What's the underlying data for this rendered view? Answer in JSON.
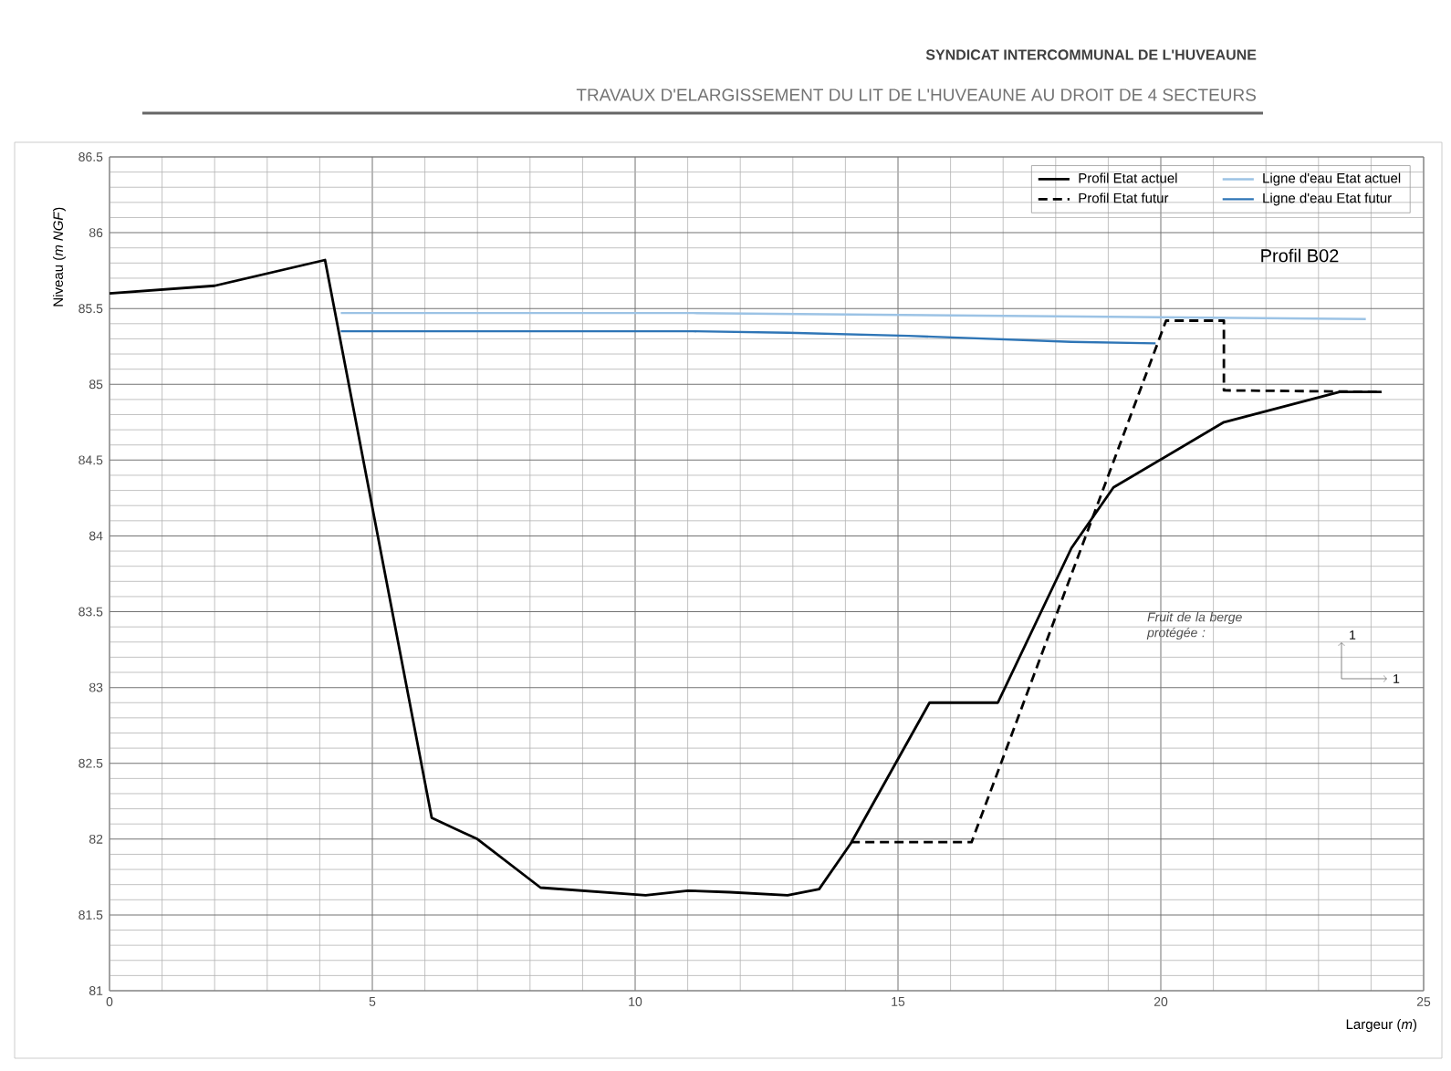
{
  "chart_data": {
    "type": "line",
    "title": "SYNDICAT INTERCOMMUNAL DE L'HUVEAUNE",
    "subtitle": "TRAVAUX D'ELARGISSEMENT DU LIT DE L'HUVEAUNE AU DROIT DE 4 SECTEURS",
    "xlabel": "Largeur (*m*)",
    "ylabel": "Niveau (*m NGF*)",
    "xlim": [
      0,
      25
    ],
    "xticks": [
      0,
      5,
      10,
      15,
      20,
      25
    ],
    "ylim": [
      81,
      86.5
    ],
    "yticks": [
      81,
      81.5,
      82,
      82.5,
      83,
      83.5,
      84,
      84.5,
      85,
      85.5,
      86,
      86.5
    ],
    "grid": true,
    "legend": "top right",
    "series": [
      {
        "name": "Profil Etat actuel",
        "color": "#000000",
        "line_style": "solid",
        "x": [
          0,
          2.0,
          4.1,
          6.13,
          7.0,
          8.2,
          10.2,
          11.0,
          11.8,
          12.9,
          13.5,
          14.1,
          15.6,
          16.9,
          18.3,
          19.1,
          21.2,
          23.4,
          24.2
        ],
        "values": [
          85.6,
          85.65,
          85.82,
          82.14,
          82.0,
          81.68,
          81.63,
          81.66,
          81.65,
          81.63,
          81.67,
          81.97,
          82.9,
          82.9,
          83.92,
          84.32,
          84.75,
          84.95,
          84.95
        ]
      },
      {
        "name": "Profil Etat futur",
        "color": "#000000",
        "line_style": "dashed",
        "x": [
          14.1,
          16.4,
          20.1,
          21.2,
          21.2,
          24.2
        ],
        "values": [
          81.98,
          81.98,
          85.42,
          85.42,
          84.96,
          84.95
        ]
      },
      {
        "name": "Ligne d'eau Etat actuel",
        "color": "#9cc3e5",
        "line_style": "solid",
        "x": [
          4.4,
          11.1,
          23.9
        ],
        "values": [
          85.47,
          85.47,
          85.43
        ]
      },
      {
        "name": "Ligne d'eau Etat futur",
        "color": "#2e75b6",
        "line_style": "solid",
        "x": [
          4.4,
          11.1,
          12.9,
          15.2,
          18.3,
          19.9
        ],
        "values": [
          85.35,
          85.35,
          85.34,
          85.32,
          85.28,
          85.27
        ]
      }
    ],
    "annotations": [
      "Profil B02",
      "Fruit de la berge protégée :",
      "1",
      "1"
    ]
  }
}
